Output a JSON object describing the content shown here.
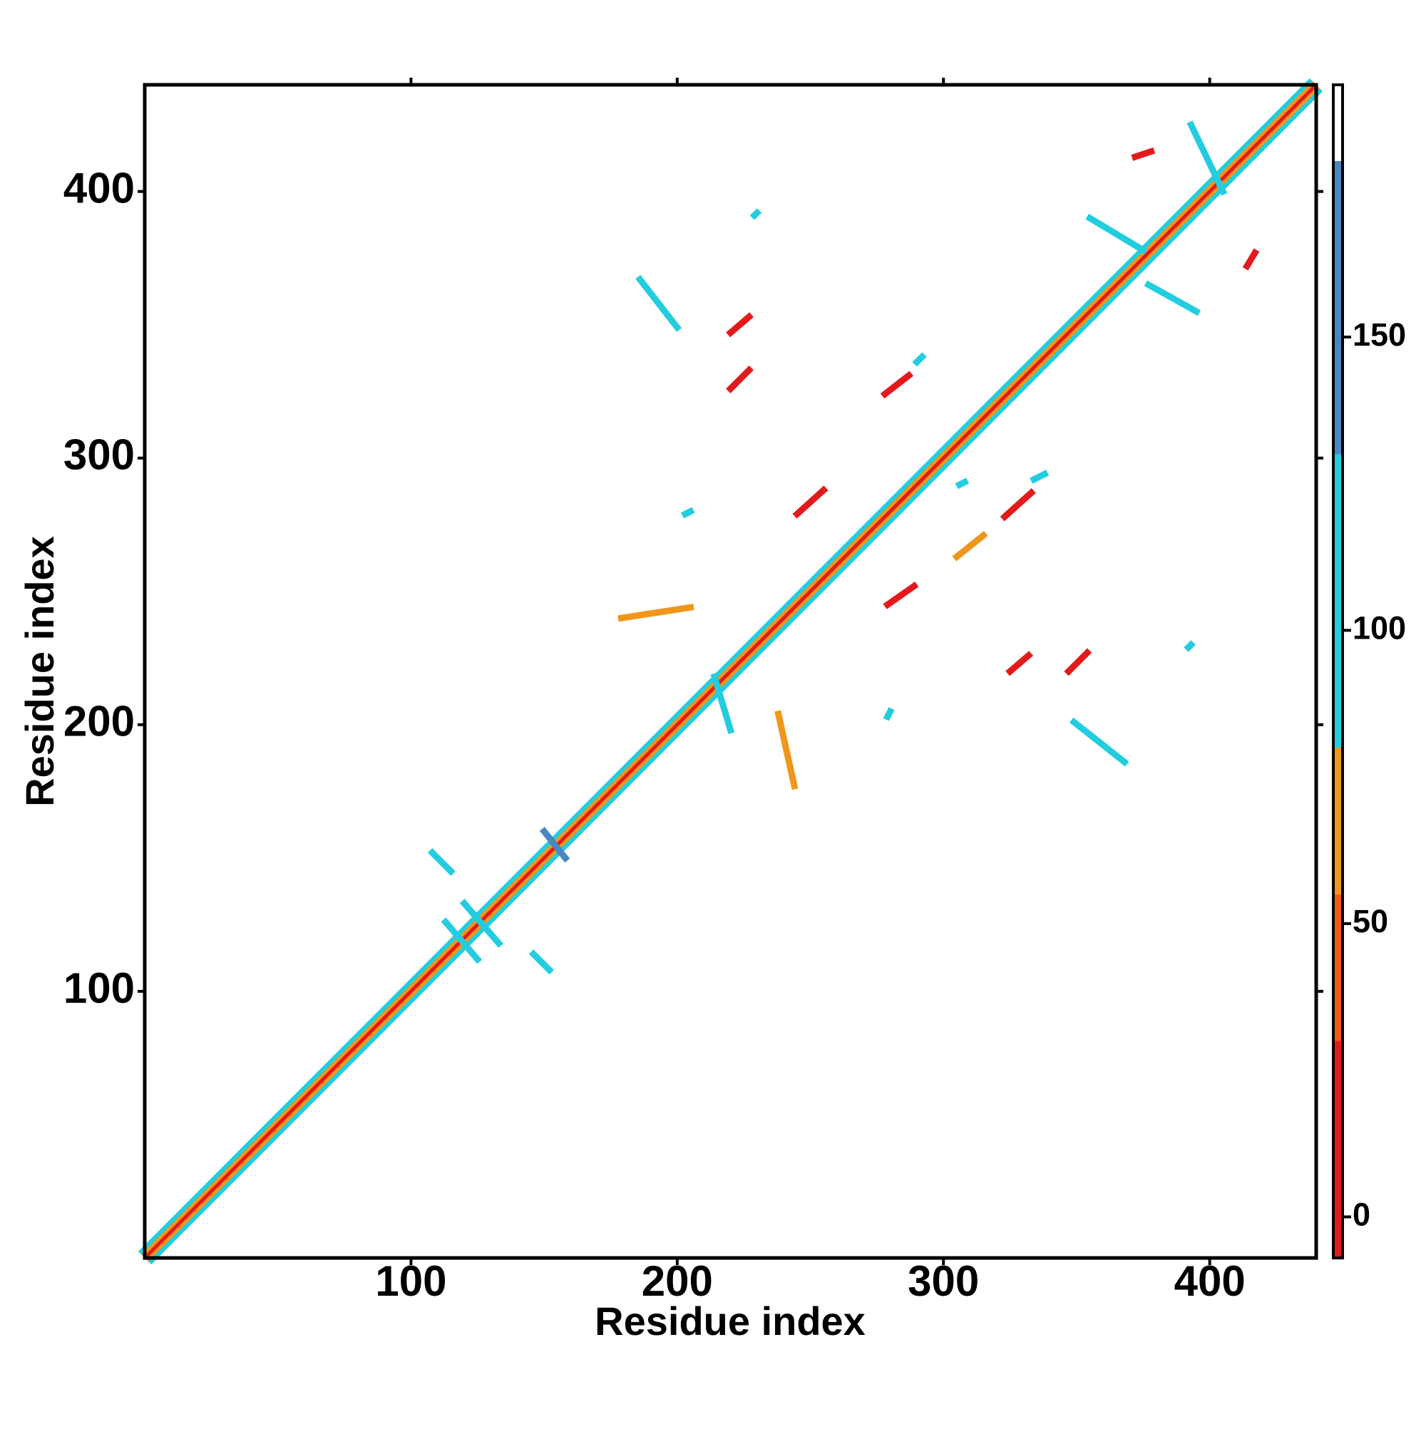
{
  "chart_data": {
    "type": "contact-map",
    "x_label": "Residue index",
    "y_label": "Residue index",
    "xlim": [
      0,
      440
    ],
    "ylim": [
      0,
      440
    ],
    "xticks": [
      100,
      200,
      300,
      400
    ],
    "yticks": [
      100,
      200,
      300,
      400
    ],
    "colorbar": {
      "lim": [
        -7,
        193
      ],
      "ticks": [
        0,
        50,
        100,
        150
      ],
      "bands": [
        {
          "from": -7,
          "to": 30,
          "color": "#e31a1c"
        },
        {
          "from": 30,
          "to": 55,
          "color": "#ef5a18"
        },
        {
          "from": 55,
          "to": 80,
          "color": "#f0961a"
        },
        {
          "from": 80,
          "to": 130,
          "color": "#22cde0"
        },
        {
          "from": 130,
          "to": 180,
          "color": "#4a86c0"
        },
        {
          "from": 180,
          "to": 193,
          "color": "#ffffff"
        }
      ]
    },
    "diagonal": [
      {
        "x": [
          0,
          440
        ],
        "y": [
          0,
          440
        ],
        "value": 90
      },
      {
        "x": [
          0,
          440
        ],
        "y": [
          0,
          440
        ],
        "value": 60
      },
      {
        "x": [
          0,
          440
        ],
        "y": [
          0,
          440
        ],
        "value": 5
      }
    ],
    "contacts": [
      {
        "x": [
          108,
          115
        ],
        "y": [
          152,
          145
        ],
        "value": 120
      },
      {
        "x": [
          113,
          125
        ],
        "y": [
          126,
          112
        ],
        "value": 120
      },
      {
        "x": [
          120,
          133
        ],
        "y": [
          133,
          118
        ],
        "value": 120
      },
      {
        "x": [
          146,
          152
        ],
        "y": [
          114,
          108
        ],
        "value": 120
      },
      {
        "x": [
          150,
          158
        ],
        "y": [
          160,
          150
        ],
        "value": 140
      },
      {
        "x": [
          220,
          227
        ],
        "y": [
          326,
          333
        ],
        "value": 5
      },
      {
        "x": [
          220,
          227
        ],
        "y": [
          347,
          353
        ],
        "value": 5
      },
      {
        "x": [
          278,
          287
        ],
        "y": [
          324,
          331
        ],
        "value": 5
      },
      {
        "x": [
          245,
          255
        ],
        "y": [
          279,
          288
        ],
        "value": 5
      },
      {
        "x": [
          279,
          289
        ],
        "y": [
          245,
          252
        ],
        "value": 5
      },
      {
        "x": [
          323,
          333
        ],
        "y": [
          278,
          287
        ],
        "value": 5
      },
      {
        "x": [
          325,
          332
        ],
        "y": [
          220,
          226
        ],
        "value": 5
      },
      {
        "x": [
          347,
          354
        ],
        "y": [
          220,
          227
        ],
        "value": 5
      },
      {
        "x": [
          372,
          378
        ],
        "y": [
          413,
          415
        ],
        "value": 5
      },
      {
        "x": [
          414,
          417
        ],
        "y": [
          372,
          377
        ],
        "value": 5
      },
      {
        "x": [
          186,
          200
        ],
        "y": [
          367,
          349
        ],
        "value": 90
      },
      {
        "x": [
          238,
          244
        ],
        "y": [
          204,
          177
        ],
        "value": 60
      },
      {
        "x": [
          179,
          205
        ],
        "y": [
          240,
          244
        ],
        "value": 60
      },
      {
        "x": [
          349,
          368
        ],
        "y": [
          201,
          186
        ],
        "value": 90
      },
      {
        "x": [
          393,
          405
        ],
        "y": [
          425,
          400
        ],
        "value": 90
      },
      {
        "x": [
          355,
          375
        ],
        "y": [
          390,
          378
        ],
        "value": 90
      },
      {
        "x": [
          377,
          395
        ],
        "y": [
          365,
          355
        ],
        "value": 90
      },
      {
        "x": [
          334,
          338
        ],
        "y": [
          292,
          294
        ],
        "value": 90
      },
      {
        "x": [
          229,
          230
        ],
        "y": [
          391,
          392
        ],
        "value": 110
      },
      {
        "x": [
          392,
          393
        ],
        "y": [
          229,
          230
        ],
        "value": 90
      },
      {
        "x": [
          214,
          220
        ],
        "y": [
          218,
          198
        ],
        "value": 90
      },
      {
        "x": [
          290,
          292
        ],
        "y": [
          336,
          338
        ],
        "value": 90
      },
      {
        "x": [
          203,
          205
        ],
        "y": [
          279,
          280
        ],
        "value": 110
      },
      {
        "x": [
          279,
          280
        ],
        "y": [
          203,
          205
        ],
        "value": 110
      },
      {
        "x": [
          306,
          308
        ],
        "y": [
          290,
          291
        ],
        "value": 110
      },
      {
        "x": [
          305,
          315
        ],
        "y": [
          263,
          271
        ],
        "value": 60
      }
    ]
  }
}
